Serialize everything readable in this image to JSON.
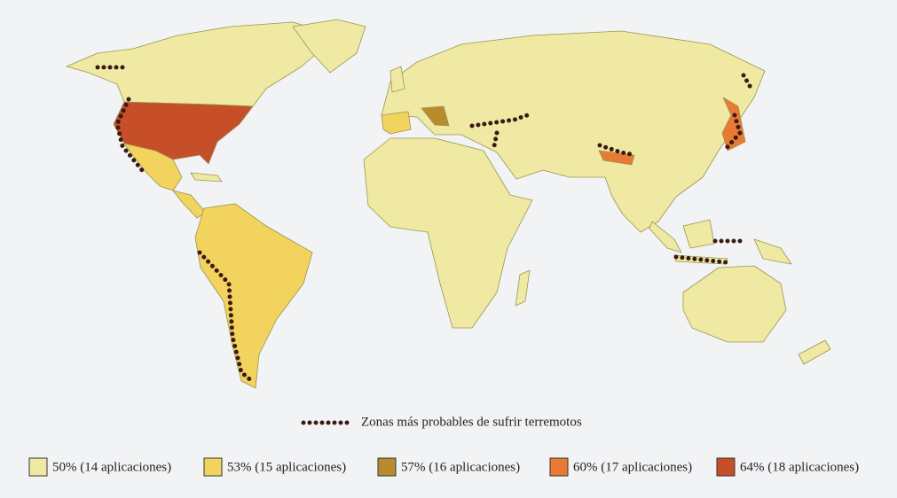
{
  "map": {
    "quake_label": "Zonas más probables de sufrir terremotos",
    "legend": [
      {
        "label": "50% (14 aplicaciones)",
        "color": "#efe9a4"
      },
      {
        "label": "53% (15 aplicaciones)",
        "color": "#f1d35e"
      },
      {
        "label": "57% (16 aplicaciones)",
        "color": "#b88b2c"
      },
      {
        "label": "60% (17 aplicaciones)",
        "color": "#e97a33"
      },
      {
        "label": "64% (18 aplicaciones)",
        "color": "#c64f2a"
      }
    ]
  }
}
